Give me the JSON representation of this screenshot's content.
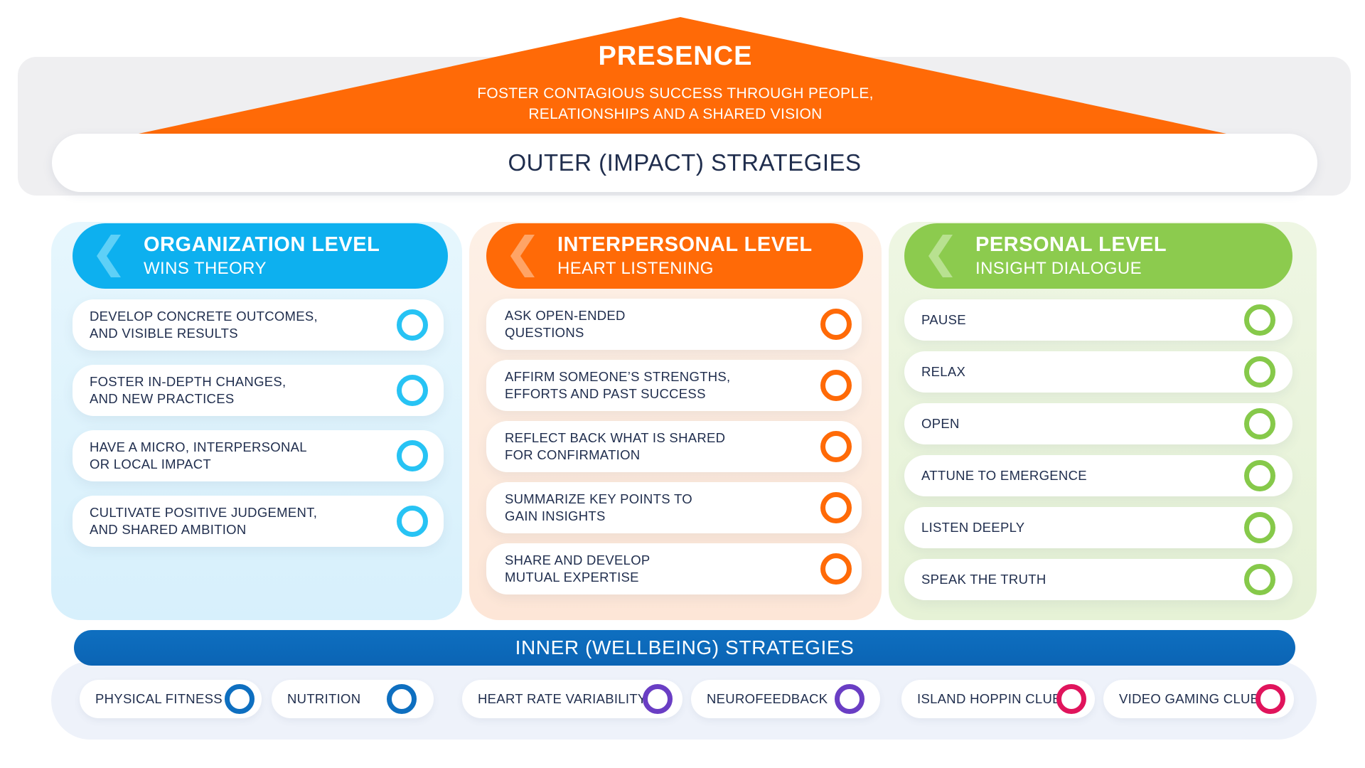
{
  "presence": {
    "title": "PRESENCE",
    "subtitle_line1": "FOSTER CONTAGIOUS SUCCESS THROUGH PEOPLE,",
    "subtitle_line2": "RELATIONSHIPS AND A SHARED VISION",
    "color": "#ff6a07"
  },
  "outer_strategies": {
    "label": "OUTER (IMPACT) STRATEGIES"
  },
  "columns": [
    {
      "title": "ORGANIZATION LEVEL",
      "subtitle": "WINS THEORY",
      "color": "#0db0ef",
      "items": [
        {
          "line1": "DEVELOP CONCRETE OUTCOMES,",
          "line2": "AND VISIBLE RESULTS"
        },
        {
          "line1": "FOSTER IN-DEPTH CHANGES,",
          "line2": "AND NEW PRACTICES"
        },
        {
          "line1": "HAVE A MICRO, INTERPERSONAL",
          "line2": "OR LOCAL IMPACT"
        },
        {
          "line1": "CULTIVATE POSITIVE JUDGEMENT,",
          "line2": "AND SHARED AMBITION"
        }
      ]
    },
    {
      "title": "INTERPERSONAL LEVEL",
      "subtitle": "HEART LISTENING",
      "color": "#ff6a07",
      "items": [
        {
          "line1": "ASK OPEN-ENDED",
          "line2": "QUESTIONS"
        },
        {
          "line1": "AFFIRM SOMEONE’S STRENGTHS,",
          "line2": "EFFORTS AND PAST SUCCESS"
        },
        {
          "line1": "REFLECT BACK WHAT IS SHARED",
          "line2": "FOR CONFIRMATION"
        },
        {
          "line1": "SUMMARIZE KEY POINTS TO",
          "line2": "GAIN INSIGHTS"
        },
        {
          "line1": "SHARE AND DEVELOP",
          "line2": "MUTUAL EXPERTISE"
        }
      ]
    },
    {
      "title": "PERSONAL LEVEL",
      "subtitle": "INSIGHT DIALOGUE",
      "color": "#8ccb4e",
      "items": [
        {
          "line1": "PAUSE"
        },
        {
          "line1": "RELAX"
        },
        {
          "line1": "OPEN"
        },
        {
          "line1": "ATTUNE TO EMERGENCE"
        },
        {
          "line1": "LISTEN DEEPLY"
        },
        {
          "line1": "SPEAK THE TRUTH"
        }
      ]
    }
  ],
  "inner_strategies": {
    "label": "INNER (WELLBEING) STRATEGIES",
    "color": "#0e6fc0",
    "items": [
      {
        "label": "PHYSICAL FITNESS",
        "ring_color": "#0e6fc0"
      },
      {
        "label": "NUTRITION",
        "ring_color": "#0e6fc0"
      },
      {
        "label": "HEART RATE VARIABILITY",
        "ring_color": "#6a3ec4"
      },
      {
        "label": "NEUROFEEDBACK",
        "ring_color": "#6a3ec4"
      },
      {
        "label": "ISLAND HOPPIN CLUB",
        "ring_color": "#e0145c"
      },
      {
        "label": "VIDEO GAMING CLUB",
        "ring_color": "#e0145c"
      }
    ]
  }
}
